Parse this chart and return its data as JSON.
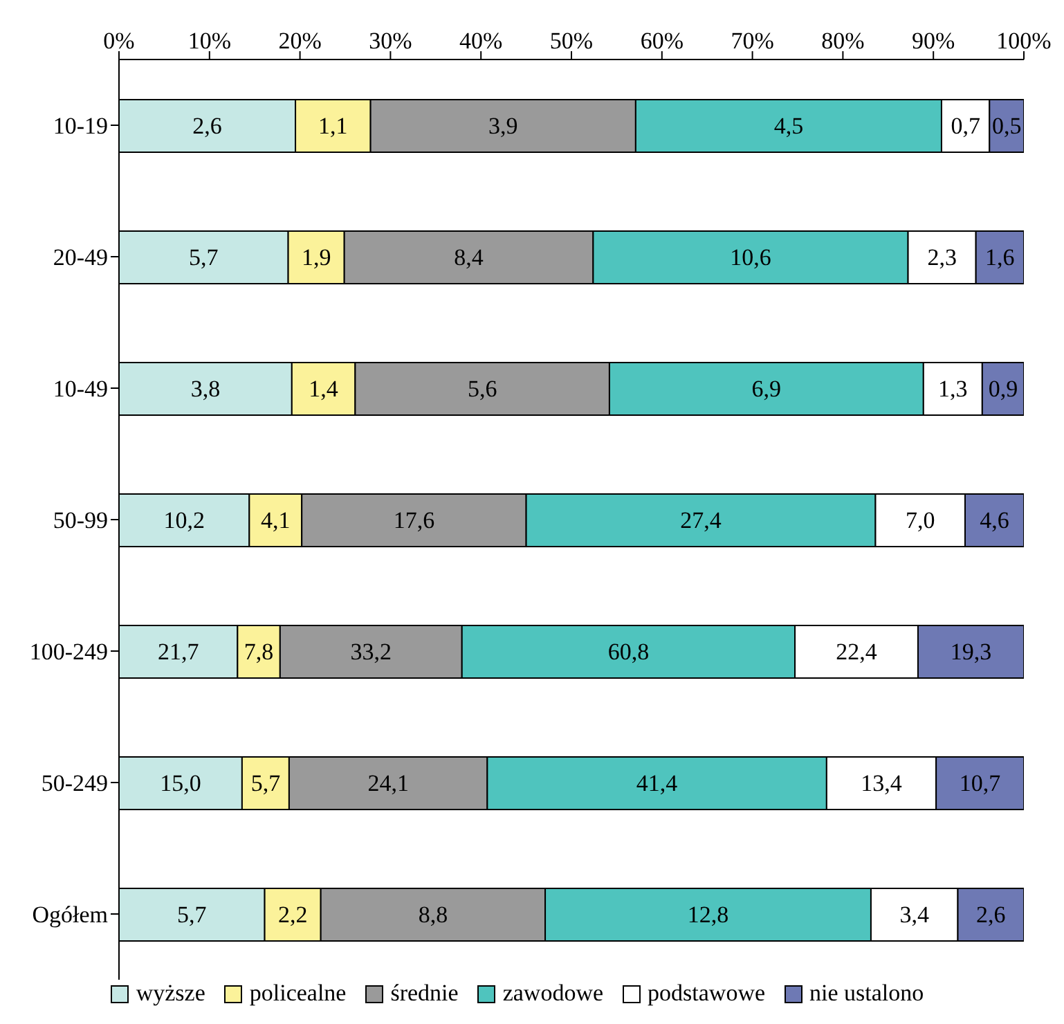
{
  "chart_data": {
    "type": "bar",
    "orientation": "horizontal",
    "stacked": true,
    "categories": [
      "10-19",
      "20-49",
      "10-49",
      "50-99",
      "100-249",
      "50-249",
      "Ogółem"
    ],
    "xlim": [
      0,
      100
    ],
    "xticks": [
      {
        "value": 0,
        "label": "0%"
      },
      {
        "value": 10,
        "label": "10%"
      },
      {
        "value": 20,
        "label": "20%"
      },
      {
        "value": 30,
        "label": "30%"
      },
      {
        "value": 40,
        "label": "40%"
      },
      {
        "value": 50,
        "label": "50%"
      },
      {
        "value": 60,
        "label": "60%"
      },
      {
        "value": 70,
        "label": "70%"
      },
      {
        "value": 80,
        "label": "80%"
      },
      {
        "value": 90,
        "label": "90%"
      },
      {
        "value": 100,
        "label": "100%"
      }
    ],
    "series": [
      {
        "name": "wyższe",
        "color": "#c6e8e5",
        "values": [
          19.5,
          18.7,
          19.1,
          14.4,
          13.1,
          13.6,
          16.1
        ]
      },
      {
        "name": "policealne",
        "color": "#fbf29a",
        "values": [
          8.3,
          6.2,
          7.0,
          5.8,
          4.7,
          5.2,
          6.2
        ]
      },
      {
        "name": "średnie",
        "color": "#9a9a9a",
        "values": [
          29.3,
          27.5,
          28.1,
          24.8,
          20.1,
          21.9,
          24.8
        ]
      },
      {
        "name": "zawodowe",
        "color": "#4fc4be",
        "values": [
          33.8,
          34.8,
          34.7,
          38.6,
          36.8,
          37.5,
          36.0
        ]
      },
      {
        "name": "podstawowe",
        "color": "#ffffff",
        "values": [
          5.3,
          7.5,
          6.5,
          9.9,
          13.6,
          12.1,
          9.6
        ]
      },
      {
        "name": "nie ustalono",
        "color": "#6e79b4",
        "values": [
          3.8,
          5.3,
          4.6,
          6.5,
          11.7,
          9.7,
          7.3
        ]
      }
    ],
    "annotations": [
      "2,6",
      "1,1",
      "3,9",
      "4,5",
      "0,7",
      "0,5",
      "5,7",
      "1,9",
      "8,4",
      "10,6",
      "2,3",
      "1,6",
      "3,8",
      "1,4",
      "5,6",
      "6,9",
      "1,3",
      "0,9",
      "10,2",
      "4,1",
      "17,6",
      "27,4",
      "7,0",
      "4,6",
      "21,7",
      "7,8",
      "33,2",
      "60,8",
      "22,4",
      "19,3",
      "15,0",
      "5,7",
      "24,1",
      "41,4",
      "13,4",
      "10,7",
      "5,7",
      "2,2",
      "8,8",
      "12,8",
      "3,4",
      "2,6"
    ],
    "legend": "bottom",
    "grid": false
  }
}
